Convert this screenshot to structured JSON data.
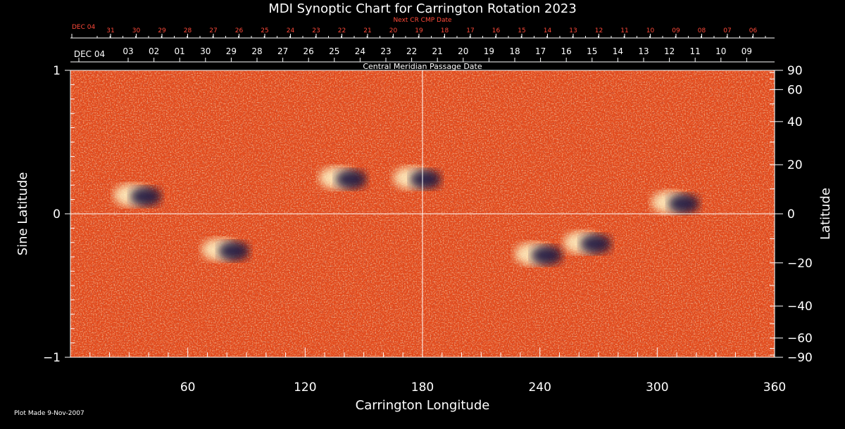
{
  "chart_data": {
    "type": "heatmap",
    "title": "MDI Synoptic Chart for Carrington Rotation 2023",
    "xlabel": "Carrington Longitude",
    "ylabel_left": "Sine Latitude",
    "ylabel_right": "Latitude",
    "xlim": [
      0,
      360
    ],
    "ylim_sine": [
      -1,
      1
    ],
    "x_ticks": [
      "60",
      "120",
      "180",
      "240",
      "300",
      "360"
    ],
    "x_tick_values": [
      60,
      120,
      180,
      240,
      300,
      360
    ],
    "y_left_ticks": [
      "1",
      "0",
      "−1"
    ],
    "y_left_tick_values": [
      1,
      0,
      -1
    ],
    "y_right_ticks": [
      "90",
      "60",
      "40",
      "20",
      "0",
      "−20",
      "−40",
      "−60",
      "−90"
    ],
    "y_right_tick_values": [
      90,
      60,
      40,
      20,
      0,
      -20,
      -40,
      -60,
      -90
    ],
    "cmp_axis_label": "Central Meridian Passage Date",
    "cmp_dates": [
      "DEC 04",
      "03",
      "02",
      "01",
      "30",
      "29",
      "28",
      "27",
      "26",
      "25",
      "24",
      "23",
      "22",
      "21",
      "20",
      "19",
      "18",
      "17",
      "16",
      "15",
      "14",
      "13",
      "12",
      "11",
      "10",
      "09"
    ],
    "next_cr_label": "Next CR CMP Date",
    "next_cr_dates": [
      "DEC 04",
      "31",
      "30",
      "29",
      "28",
      "27",
      "26",
      "25",
      "24",
      "23",
      "22",
      "21",
      "20",
      "19",
      "18",
      "17",
      "16",
      "15",
      "14",
      "13",
      "12",
      "11",
      "10",
      "09",
      "08",
      "07",
      "06"
    ],
    "footer": "Plot Made  9-Nov-2007",
    "active_regions": [
      {
        "lon": 35,
        "sinlat": 0.13,
        "polarity": "mixed"
      },
      {
        "lon": 80,
        "sinlat": -0.25,
        "polarity": "mixed"
      },
      {
        "lon": 140,
        "sinlat": 0.25,
        "polarity": "mixed"
      },
      {
        "lon": 178,
        "sinlat": 0.25,
        "polarity": "mixed"
      },
      {
        "lon": 240,
        "sinlat": -0.28,
        "polarity": "mixed"
      },
      {
        "lon": 265,
        "sinlat": -0.2,
        "polarity": "mixed"
      },
      {
        "lon": 310,
        "sinlat": 0.08,
        "polarity": "mixed"
      }
    ],
    "colors": {
      "background": "#000000",
      "field_base": "#e8501e",
      "positive": "#ffffe0",
      "negative": "#1a1640",
      "next_cr_text": "#ff4a3a"
    }
  }
}
